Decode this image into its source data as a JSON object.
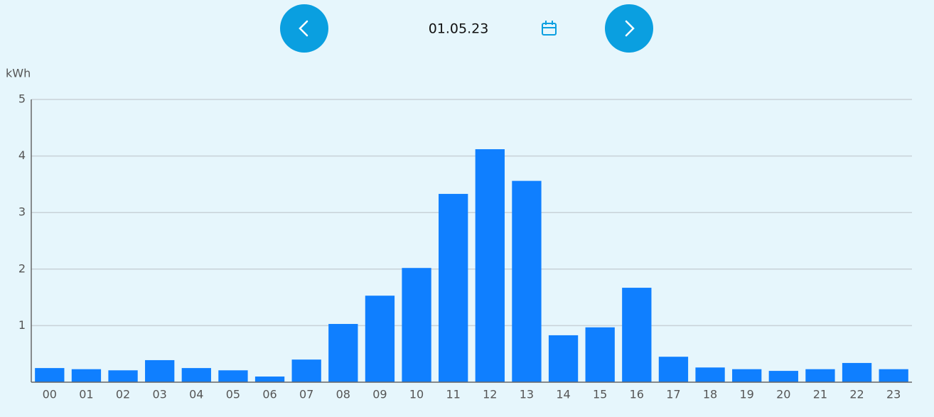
{
  "date": "01.05.23",
  "chart_data": {
    "type": "bar",
    "y_label": "kWh",
    "categories": [
      "00",
      "01",
      "02",
      "03",
      "04",
      "05",
      "06",
      "07",
      "08",
      "09",
      "10",
      "11",
      "12",
      "13",
      "14",
      "15",
      "16",
      "17",
      "18",
      "19",
      "20",
      "21",
      "22",
      "23"
    ],
    "values": [
      0.25,
      0.23,
      0.21,
      0.39,
      0.25,
      0.21,
      0.1,
      0.4,
      1.03,
      1.53,
      2.02,
      3.33,
      4.12,
      3.56,
      0.83,
      0.97,
      1.67,
      0.45,
      0.26,
      0.23,
      0.2,
      0.23,
      0.34,
      0.23
    ],
    "color": "#0f7fff",
    "ylim": [
      0,
      5
    ],
    "yticks": [
      1,
      2,
      3,
      4,
      5
    ],
    "grid": true
  }
}
